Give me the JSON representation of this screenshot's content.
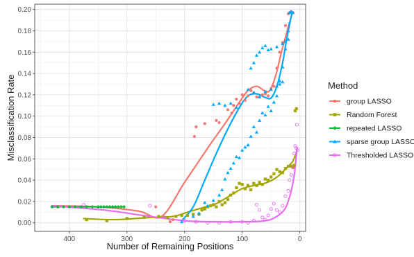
{
  "chart_data": {
    "type": "scatter",
    "xlabel": "Number of Remaining Positions",
    "ylabel": "Misclassification Rate",
    "x_reversed": true,
    "xlim": [
      460,
      -10
    ],
    "ylim": [
      -0.008,
      0.205
    ],
    "x_ticks": [
      400,
      300,
      200,
      100,
      0
    ],
    "y_ticks": [
      0.0,
      0.02,
      0.04,
      0.06,
      0.08,
      0.1,
      0.12,
      0.14,
      0.16,
      0.18,
      0.2
    ],
    "y_tick_labels": [
      "0.00",
      "0.02",
      "0.04",
      "0.06",
      "0.08",
      "0.10",
      "0.12",
      "0.14",
      "0.16",
      "0.18",
      "0.20"
    ],
    "grid": true,
    "legend": {
      "title": "Method",
      "position": "right"
    },
    "series": [
      {
        "name": "group LASSO",
        "color": "#F8766D",
        "marker": "circle",
        "points": [
          [
            420,
            0.015
          ],
          [
            350,
            0.015
          ],
          [
            250,
            0.015
          ],
          [
            225,
            0.001
          ],
          [
            220,
            0.003
          ],
          [
            183,
            0.081
          ],
          [
            180,
            0.09
          ],
          [
            165,
            0.093
          ],
          [
            145,
            0.096
          ],
          [
            140,
            0.094
          ],
          [
            125,
            0.106
          ],
          [
            118,
            0.103
          ],
          [
            115,
            0.11
          ],
          [
            110,
            0.116
          ],
          [
            105,
            0.112
          ],
          [
            100,
            0.12
          ],
          [
            95,
            0.115
          ],
          [
            90,
            0.119
          ],
          [
            85,
            0.124
          ],
          [
            80,
            0.122
          ],
          [
            75,
            0.118
          ],
          [
            70,
            0.118
          ],
          [
            65,
            0.12
          ],
          [
            60,
            0.121
          ],
          [
            55,
            0.119
          ],
          [
            50,
            0.126
          ],
          [
            45,
            0.128
          ],
          [
            40,
            0.145
          ],
          [
            35,
            0.16
          ],
          [
            30,
            0.169
          ],
          [
            25,
            0.185
          ],
          [
            20,
            0.196
          ],
          [
            18,
            0.197
          ],
          [
            15,
            0.198
          ],
          [
            12,
            0.197
          ]
        ],
        "fit": [
          [
            430,
            0.016
          ],
          [
            350,
            0.015
          ],
          [
            280,
            0.011
          ],
          [
            240,
            0.006
          ],
          [
            200,
            0.038
          ],
          [
            160,
            0.07
          ],
          [
            130,
            0.093
          ],
          [
            105,
            0.113
          ],
          [
            90,
            0.124
          ],
          [
            75,
            0.128
          ],
          [
            62,
            0.124
          ],
          [
            52,
            0.124
          ],
          [
            42,
            0.138
          ],
          [
            32,
            0.16
          ],
          [
            22,
            0.18
          ],
          [
            13,
            0.197
          ]
        ]
      },
      {
        "name": "Random Forest",
        "color": "#A3A500",
        "marker": "square",
        "points": [
          [
            370,
            0.003
          ],
          [
            335,
            0.002
          ],
          [
            300,
            0.004
          ],
          [
            270,
            0.005
          ],
          [
            245,
            0.006
          ],
          [
            230,
            0.005
          ],
          [
            215,
            0.006
          ],
          [
            205,
            0.007
          ],
          [
            195,
            0.007
          ],
          [
            185,
            0.008
          ],
          [
            175,
            0.008
          ],
          [
            170,
            0.012
          ],
          [
            165,
            0.013
          ],
          [
            160,
            0.015
          ],
          [
            155,
            0.016
          ],
          [
            150,
            0.017
          ],
          [
            145,
            0.015
          ],
          [
            140,
            0.02
          ],
          [
            135,
            0.017
          ],
          [
            130,
            0.019
          ],
          [
            125,
            0.022
          ],
          [
            120,
            0.026
          ],
          [
            115,
            0.028
          ],
          [
            110,
            0.033
          ],
          [
            105,
            0.037
          ],
          [
            100,
            0.036
          ],
          [
            95,
            0.032
          ],
          [
            90,
            0.035
          ],
          [
            85,
            0.031
          ],
          [
            80,
            0.037
          ],
          [
            75,
            0.035
          ],
          [
            70,
            0.038
          ],
          [
            65,
            0.036
          ],
          [
            60,
            0.041
          ],
          [
            55,
            0.04
          ],
          [
            50,
            0.043
          ],
          [
            45,
            0.046
          ],
          [
            40,
            0.05
          ],
          [
            35,
            0.048
          ],
          [
            30,
            0.047
          ],
          [
            25,
            0.051
          ],
          [
            20,
            0.053
          ],
          [
            15,
            0.053
          ],
          [
            12,
            0.052
          ],
          [
            10,
            0.054
          ],
          [
            8,
            0.105
          ],
          [
            6,
            0.107
          ]
        ],
        "fit": [
          [
            375,
            0.004
          ],
          [
            320,
            0.003
          ],
          [
            260,
            0.005
          ],
          [
            220,
            0.006
          ],
          [
            195,
            0.01
          ],
          [
            170,
            0.014
          ],
          [
            145,
            0.018
          ],
          [
            120,
            0.026
          ],
          [
            100,
            0.032
          ],
          [
            80,
            0.035
          ],
          [
            62,
            0.037
          ],
          [
            48,
            0.04
          ],
          [
            35,
            0.045
          ],
          [
            22,
            0.052
          ],
          [
            12,
            0.058
          ],
          [
            5,
            0.068
          ]
        ]
      },
      {
        "name": "repeated LASSO",
        "color": "#00BA38",
        "marker": "diamond",
        "points": [
          [
            430,
            0.015
          ],
          [
            420,
            0.015
          ],
          [
            410,
            0.015
          ],
          [
            400,
            0.015
          ],
          [
            390,
            0.015
          ],
          [
            380,
            0.015
          ],
          [
            370,
            0.015
          ],
          [
            360,
            0.015
          ],
          [
            350,
            0.015
          ],
          [
            345,
            0.015
          ],
          [
            340,
            0.015
          ],
          [
            335,
            0.015
          ],
          [
            330,
            0.015
          ],
          [
            325,
            0.015
          ],
          [
            320,
            0.015
          ],
          [
            315,
            0.015
          ],
          [
            310,
            0.015
          ],
          [
            305,
            0.015
          ]
        ],
        "fit": [
          [
            430,
            0.015
          ],
          [
            305,
            0.015
          ]
        ]
      },
      {
        "name": "sparse group LASSO",
        "color": "#00A9FF",
        "marker": "triangle",
        "points": [
          [
            205,
            0.001
          ],
          [
            185,
            0.006
          ],
          [
            175,
            0.009
          ],
          [
            165,
            0.019
          ],
          [
            160,
            0.016
          ],
          [
            150,
            0.021
          ],
          [
            140,
            0.026
          ],
          [
            135,
            0.031
          ],
          [
            130,
            0.041
          ],
          [
            125,
            0.047
          ],
          [
            120,
            0.051
          ],
          [
            115,
            0.056
          ],
          [
            110,
            0.062
          ],
          [
            105,
            0.061
          ],
          [
            100,
            0.068
          ],
          [
            95,
            0.071
          ],
          [
            90,
            0.073
          ],
          [
            85,
            0.081
          ],
          [
            80,
            0.09
          ],
          [
            75,
            0.085
          ],
          [
            70,
            0.096
          ],
          [
            65,
            0.103
          ],
          [
            60,
            0.101
          ],
          [
            55,
            0.109
          ],
          [
            50,
            0.105
          ],
          [
            45,
            0.113
          ],
          [
            40,
            0.119
          ],
          [
            35,
            0.133
          ],
          [
            30,
            0.146
          ],
          [
            25,
            0.163
          ],
          [
            20,
            0.18
          ],
          [
            18,
            0.197
          ],
          [
            15,
            0.198
          ],
          [
            12,
            0.197
          ],
          [
            150,
            0.111
          ],
          [
            140,
            0.112
          ],
          [
            130,
            0.11
          ],
          [
            120,
            0.112
          ],
          [
            110,
            0.108
          ],
          [
            85,
            0.145
          ],
          [
            80,
            0.15
          ],
          [
            75,
            0.157
          ],
          [
            70,
            0.16
          ],
          [
            65,
            0.164
          ],
          [
            60,
            0.166
          ],
          [
            55,
            0.162
          ],
          [
            50,
            0.163
          ],
          [
            40,
            0.165
          ],
          [
            30,
            0.168
          ],
          [
            25,
            0.17
          ],
          [
            20,
            0.172
          ],
          [
            90,
            0.125
          ],
          [
            80,
            0.122
          ],
          [
            70,
            0.118
          ],
          [
            60,
            0.123
          ],
          [
            50,
            0.125
          ],
          [
            40,
            0.128
          ],
          [
            35,
            0.13
          ],
          [
            30,
            0.132
          ]
        ],
        "fit": [
          [
            205,
            0.002
          ],
          [
            185,
            0.015
          ],
          [
            165,
            0.04
          ],
          [
            145,
            0.065
          ],
          [
            125,
            0.088
          ],
          [
            105,
            0.108
          ],
          [
            90,
            0.119
          ],
          [
            75,
            0.121
          ],
          [
            62,
            0.118
          ],
          [
            50,
            0.117
          ],
          [
            40,
            0.128
          ],
          [
            30,
            0.15
          ],
          [
            22,
            0.175
          ],
          [
            14,
            0.196
          ]
        ]
      },
      {
        "name": "Thresholded LASSO",
        "color": "#E76BF3",
        "marker": "circle-open",
        "points": [
          [
            375,
            0.017
          ],
          [
            260,
            0.016
          ],
          [
            235,
            0.005
          ],
          [
            200,
            0.002
          ],
          [
            180,
            0.001
          ],
          [
            160,
            0.0
          ],
          [
            140,
            0.0
          ],
          [
            120,
            0.001
          ],
          [
            100,
            0.001
          ],
          [
            90,
            0.0
          ],
          [
            80,
            0.002
          ],
          [
            75,
            0.017
          ],
          [
            70,
            0.012
          ],
          [
            65,
            0.005
          ],
          [
            60,
            0.003
          ],
          [
            55,
            0.007
          ],
          [
            50,
            0.013
          ],
          [
            45,
            0.018
          ],
          [
            40,
            0.012
          ],
          [
            35,
            0.01
          ],
          [
            30,
            0.016
          ],
          [
            25,
            0.025
          ],
          [
            20,
            0.03
          ],
          [
            18,
            0.04
          ],
          [
            15,
            0.045
          ],
          [
            12,
            0.052
          ],
          [
            10,
            0.065
          ],
          [
            8,
            0.072
          ],
          [
            6,
            0.07
          ],
          [
            5,
            0.092
          ],
          [
            4,
            0.068
          ]
        ],
        "fit": [
          [
            430,
            0.016
          ],
          [
            340,
            0.012
          ],
          [
            260,
            0.006
          ],
          [
            200,
            0.002
          ],
          [
            150,
            0.001
          ],
          [
            100,
            0.001
          ],
          [
            60,
            0.002
          ],
          [
            40,
            0.006
          ],
          [
            25,
            0.014
          ],
          [
            15,
            0.03
          ],
          [
            9,
            0.048
          ],
          [
            5,
            0.07
          ]
        ]
      }
    ]
  }
}
